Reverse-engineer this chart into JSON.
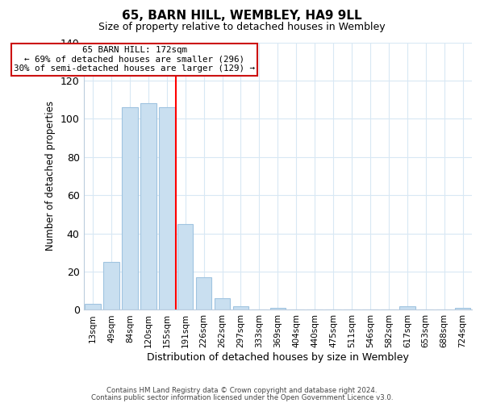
{
  "title": "65, BARN HILL, WEMBLEY, HA9 9LL",
  "subtitle": "Size of property relative to detached houses in Wembley",
  "xlabel": "Distribution of detached houses by size in Wembley",
  "ylabel": "Number of detached properties",
  "bar_labels": [
    "13sqm",
    "49sqm",
    "84sqm",
    "120sqm",
    "155sqm",
    "191sqm",
    "226sqm",
    "262sqm",
    "297sqm",
    "333sqm",
    "369sqm",
    "404sqm",
    "440sqm",
    "475sqm",
    "511sqm",
    "546sqm",
    "582sqm",
    "617sqm",
    "653sqm",
    "688sqm",
    "724sqm"
  ],
  "bar_values": [
    3,
    25,
    106,
    108,
    106,
    45,
    17,
    6,
    2,
    0,
    1,
    0,
    0,
    0,
    0,
    0,
    0,
    2,
    0,
    0,
    1
  ],
  "bar_color": "#c9dff0",
  "bar_edge_color": "#a0c4e0",
  "red_line_index": 4.5,
  "ylim": [
    0,
    140
  ],
  "yticks": [
    0,
    20,
    40,
    60,
    80,
    100,
    120,
    140
  ],
  "annotation_title": "65 BARN HILL: 172sqm",
  "annotation_line1": "← 69% of detached houses are smaller (296)",
  "annotation_line2": "30% of semi-detached houses are larger (129) →",
  "footnote1": "Contains HM Land Registry data © Crown copyright and database right 2024.",
  "footnote2": "Contains public sector information licensed under the Open Government Licence v3.0.",
  "background_color": "#ffffff",
  "grid_color": "#d8e8f4"
}
